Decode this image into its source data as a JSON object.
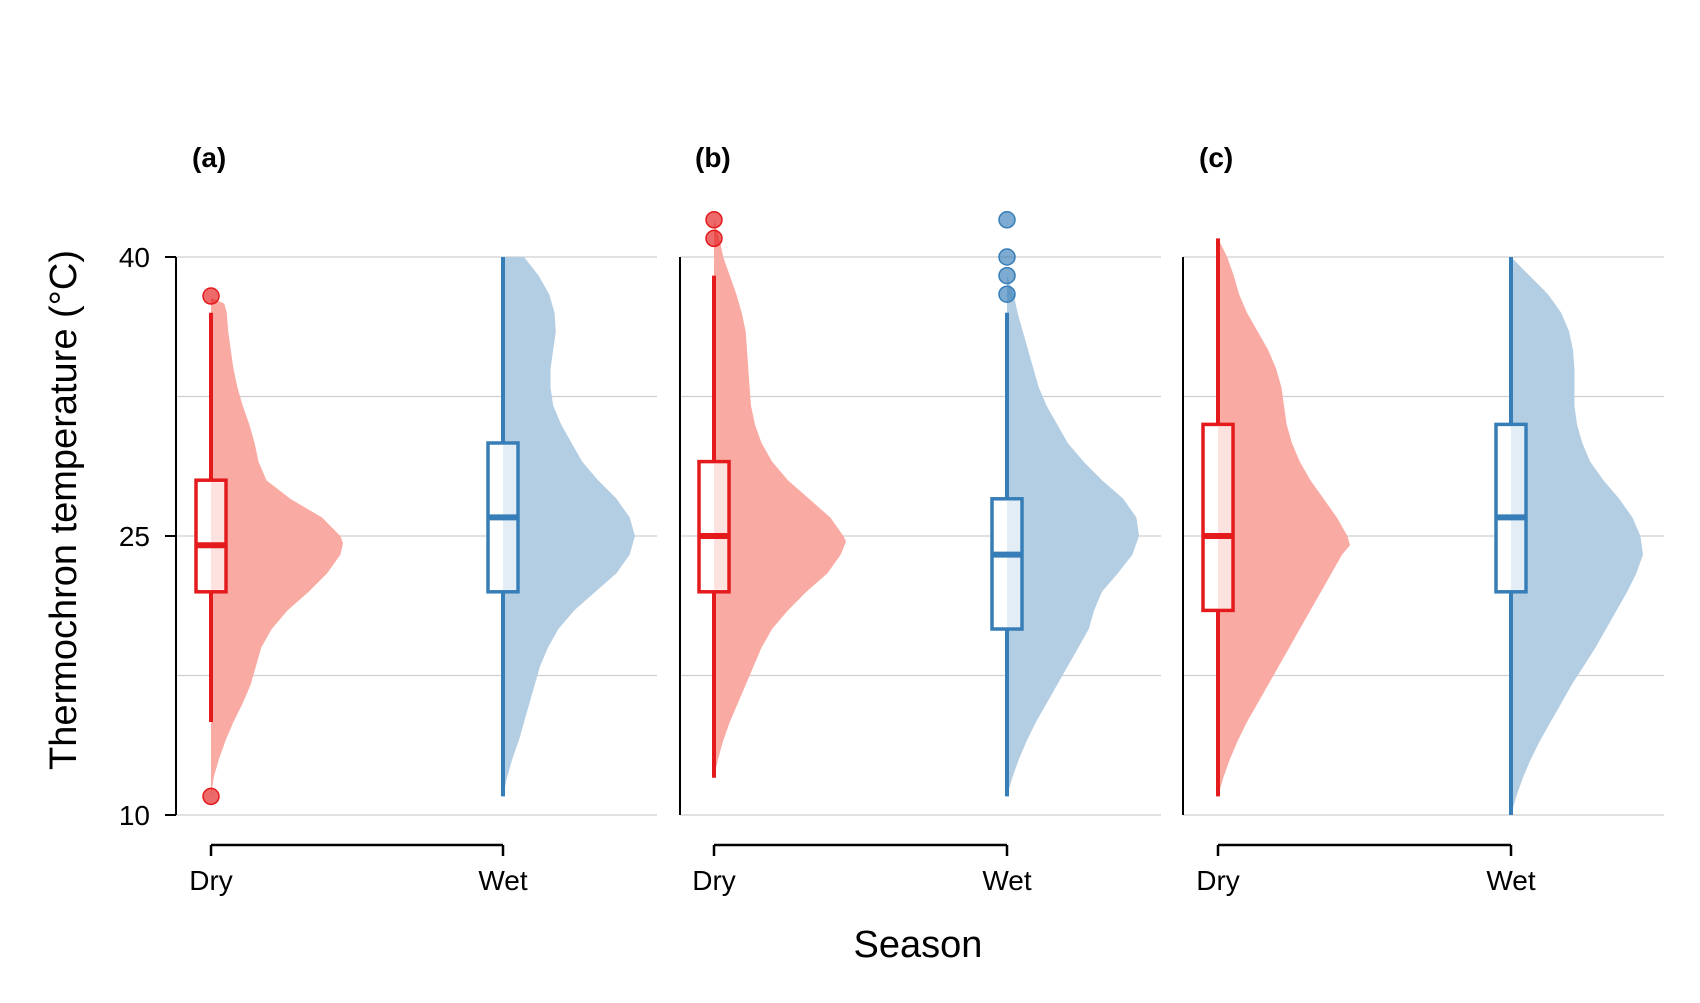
{
  "chart_data": {
    "type": "raincloud",
    "ylabel": "Thermochron temperature (°C)",
    "xlabel": "Season",
    "ylim": [
      10,
      40
    ],
    "y_ticks": [
      10,
      25,
      40
    ],
    "grid_minor": [
      17.5,
      32.5
    ],
    "categories": [
      "Dry",
      "Wet"
    ],
    "colors": {
      "Dry": {
        "line": "#e41a1c",
        "fill": "#f9aaa2",
        "box_fill": "#fde2df"
      },
      "Wet": {
        "line": "#377eb8",
        "fill": "#b3cde3",
        "box_fill": "#e3edf5"
      }
    },
    "panels": [
      {
        "label": "(a)",
        "groups": [
          {
            "name": "Dry",
            "q1": 22,
            "median": 24.5,
            "q3": 28,
            "whisker_low": 15,
            "whisker_high": 37,
            "outliers": [
              37.9,
              11
            ],
            "density": [
              [
                11,
                0.0
              ],
              [
                12,
                0.02
              ],
              [
                13,
                0.06
              ],
              [
                14,
                0.11
              ],
              [
                15,
                0.17
              ],
              [
                16,
                0.24
              ],
              [
                17,
                0.3
              ],
              [
                18,
                0.34
              ],
              [
                19,
                0.38
              ],
              [
                20,
                0.46
              ],
              [
                21,
                0.58
              ],
              [
                22,
                0.74
              ],
              [
                23,
                0.88
              ],
              [
                24,
                0.98
              ],
              [
                24.6,
                1.0
              ],
              [
                25,
                0.98
              ],
              [
                26,
                0.84
              ],
              [
                27,
                0.6
              ],
              [
                28,
                0.42
              ],
              [
                29,
                0.36
              ],
              [
                30,
                0.33
              ],
              [
                31,
                0.29
              ],
              [
                32,
                0.24
              ],
              [
                33,
                0.2
              ],
              [
                34,
                0.17
              ],
              [
                35,
                0.15
              ],
              [
                36,
                0.13
              ],
              [
                37,
                0.12
              ],
              [
                37.5,
                0.1
              ],
              [
                37.8,
                0.0
              ]
            ]
          },
          {
            "name": "Wet",
            "q1": 22,
            "median": 26,
            "q3": 30,
            "whisker_low": 11,
            "whisker_high": 40,
            "outliers": [],
            "density": [
              [
                11,
                0.0
              ],
              [
                12,
                0.03
              ],
              [
                13,
                0.07
              ],
              [
                14,
                0.12
              ],
              [
                15,
                0.16
              ],
              [
                16,
                0.2
              ],
              [
                17,
                0.24
              ],
              [
                18,
                0.28
              ],
              [
                19,
                0.34
              ],
              [
                20,
                0.42
              ],
              [
                21,
                0.54
              ],
              [
                22,
                0.7
              ],
              [
                23,
                0.86
              ],
              [
                24,
                0.96
              ],
              [
                25,
                1.0
              ],
              [
                26,
                0.96
              ],
              [
                27,
                0.86
              ],
              [
                28,
                0.72
              ],
              [
                29,
                0.6
              ],
              [
                30,
                0.52
              ],
              [
                31,
                0.44
              ],
              [
                32,
                0.38
              ],
              [
                33,
                0.36
              ],
              [
                34,
                0.36
              ],
              [
                35,
                0.38
              ],
              [
                36,
                0.4
              ],
              [
                37,
                0.39
              ],
              [
                38,
                0.35
              ],
              [
                39,
                0.27
              ],
              [
                40,
                0.16
              ]
            ]
          }
        ]
      },
      {
        "label": "(b)",
        "groups": [
          {
            "name": "Dry",
            "q1": 22,
            "median": 25,
            "q3": 29,
            "whisker_low": 12,
            "whisker_high": 39,
            "outliers": [
              41,
              42
            ],
            "density": [
              [
                12,
                0.0
              ],
              [
                13,
                0.03
              ],
              [
                14,
                0.07
              ],
              [
                15,
                0.12
              ],
              [
                16,
                0.18
              ],
              [
                17,
                0.24
              ],
              [
                18,
                0.3
              ],
              [
                19,
                0.36
              ],
              [
                20,
                0.44
              ],
              [
                21,
                0.56
              ],
              [
                22,
                0.7
              ],
              [
                23,
                0.86
              ],
              [
                24,
                0.96
              ],
              [
                24.7,
                1.0
              ],
              [
                25,
                0.98
              ],
              [
                26,
                0.88
              ],
              [
                27,
                0.72
              ],
              [
                28,
                0.56
              ],
              [
                29,
                0.44
              ],
              [
                30,
                0.36
              ],
              [
                31,
                0.31
              ],
              [
                32,
                0.28
              ],
              [
                33,
                0.27
              ],
              [
                34,
                0.26
              ],
              [
                35,
                0.25
              ],
              [
                36,
                0.24
              ],
              [
                37,
                0.21
              ],
              [
                38,
                0.17
              ],
              [
                39,
                0.12
              ],
              [
                40,
                0.07
              ],
              [
                41,
                0.04
              ],
              [
                42,
                0.0
              ]
            ]
          },
          {
            "name": "Wet",
            "q1": 20,
            "median": 24,
            "q3": 27,
            "whisker_low": 11,
            "whisker_high": 37,
            "outliers": [
              38,
              39,
              40,
              42
            ],
            "density": [
              [
                11,
                0.0
              ],
              [
                12,
                0.04
              ],
              [
                13,
                0.09
              ],
              [
                14,
                0.15
              ],
              [
                15,
                0.22
              ],
              [
                16,
                0.3
              ],
              [
                17,
                0.38
              ],
              [
                18,
                0.46
              ],
              [
                19,
                0.54
              ],
              [
                20,
                0.62
              ],
              [
                21,
                0.66
              ],
              [
                22,
                0.72
              ],
              [
                23,
                0.84
              ],
              [
                24,
                0.95
              ],
              [
                25,
                1.0
              ],
              [
                26,
                0.98
              ],
              [
                27,
                0.88
              ],
              [
                28,
                0.72
              ],
              [
                29,
                0.58
              ],
              [
                30,
                0.46
              ],
              [
                31,
                0.38
              ],
              [
                32,
                0.3
              ],
              [
                33,
                0.24
              ],
              [
                34,
                0.2
              ],
              [
                35,
                0.16
              ],
              [
                36,
                0.12
              ],
              [
                37,
                0.08
              ],
              [
                38,
                0.05
              ],
              [
                39,
                0.0
              ]
            ]
          }
        ]
      },
      {
        "label": "(c)",
        "groups": [
          {
            "name": "Dry",
            "q1": 21,
            "median": 25,
            "q3": 31,
            "whisker_low": 11,
            "whisker_high": 41,
            "outliers": [],
            "density": [
              [
                11,
                0.0
              ],
              [
                12,
                0.04
              ],
              [
                13,
                0.09
              ],
              [
                14,
                0.15
              ],
              [
                15,
                0.22
              ],
              [
                16,
                0.3
              ],
              [
                17,
                0.38
              ],
              [
                18,
                0.46
              ],
              [
                19,
                0.54
              ],
              [
                20,
                0.62
              ],
              [
                21,
                0.7
              ],
              [
                22,
                0.78
              ],
              [
                23,
                0.86
              ],
              [
                24,
                0.94
              ],
              [
                24.5,
                1.0
              ],
              [
                25,
                0.98
              ],
              [
                26,
                0.9
              ],
              [
                27,
                0.8
              ],
              [
                28,
                0.7
              ],
              [
                29,
                0.62
              ],
              [
                30,
                0.56
              ],
              [
                31,
                0.52
              ],
              [
                32,
                0.5
              ],
              [
                33,
                0.48
              ],
              [
                34,
                0.44
              ],
              [
                35,
                0.38
              ],
              [
                36,
                0.3
              ],
              [
                37,
                0.22
              ],
              [
                38,
                0.16
              ],
              [
                39,
                0.12
              ],
              [
                40,
                0.07
              ],
              [
                41,
                0.0
              ]
            ]
          },
          {
            "name": "Wet",
            "q1": 22,
            "median": 26,
            "q3": 31,
            "whisker_low": 10,
            "whisker_high": 40,
            "outliers": [],
            "density": [
              [
                10,
                0.0
              ],
              [
                11,
                0.04
              ],
              [
                12,
                0.09
              ],
              [
                13,
                0.15
              ],
              [
                14,
                0.22
              ],
              [
                15,
                0.3
              ],
              [
                16,
                0.38
              ],
              [
                17,
                0.46
              ],
              [
                18,
                0.55
              ],
              [
                19,
                0.64
              ],
              [
                20,
                0.72
              ],
              [
                21,
                0.8
              ],
              [
                22,
                0.88
              ],
              [
                23,
                0.95
              ],
              [
                24,
                1.0
              ],
              [
                25,
                0.98
              ],
              [
                26,
                0.92
              ],
              [
                27,
                0.82
              ],
              [
                28,
                0.7
              ],
              [
                29,
                0.6
              ],
              [
                30,
                0.54
              ],
              [
                31,
                0.5
              ],
              [
                32,
                0.48
              ],
              [
                33,
                0.48
              ],
              [
                34,
                0.48
              ],
              [
                35,
                0.47
              ],
              [
                36,
                0.44
              ],
              [
                37,
                0.38
              ],
              [
                38,
                0.28
              ],
              [
                39,
                0.14
              ],
              [
                40,
                0.0
              ]
            ]
          }
        ]
      }
    ]
  }
}
